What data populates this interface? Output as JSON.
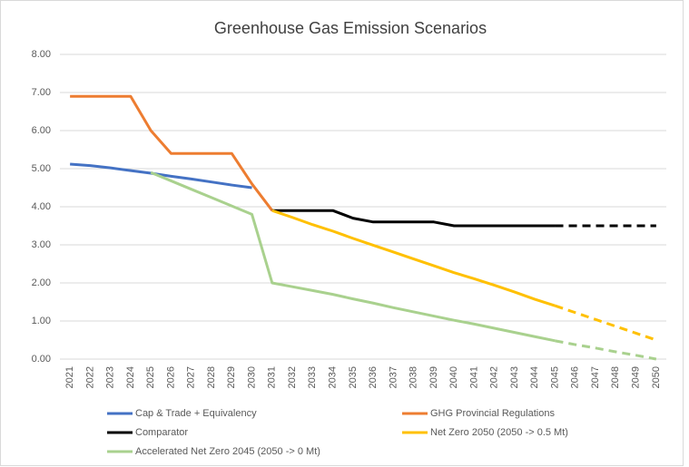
{
  "chart_data": {
    "type": "line",
    "title": "Greenhouse Gas Emission Scenarios",
    "categories": [
      "2021",
      "2022",
      "2023",
      "2024",
      "2025",
      "2026",
      "2027",
      "2028",
      "2029",
      "2030",
      "2031",
      "2032",
      "2033",
      "2034",
      "2035",
      "2036",
      "2037",
      "2038",
      "2039",
      "2040",
      "2041",
      "2042",
      "2043",
      "2044",
      "2045",
      "2046",
      "2047",
      "2048",
      "2049",
      "2050"
    ],
    "ylim": [
      0,
      8
    ],
    "yticks": [
      {
        "value": 0,
        "label": "0.00"
      },
      {
        "value": 1,
        "label": "1.00"
      },
      {
        "value": 2,
        "label": "2.00"
      },
      {
        "value": 3,
        "label": "3.00"
      },
      {
        "value": 4,
        "label": "4.00"
      },
      {
        "value": 5,
        "label": "5.00"
      },
      {
        "value": 6,
        "label": "6.00"
      },
      {
        "value": 7,
        "label": "7.00"
      },
      {
        "value": 8,
        "label": "8.00"
      }
    ],
    "grid": true,
    "series": [
      {
        "name": "Cap & Trade + Equivalency",
        "color": "#4472c4",
        "values": [
          5.12,
          5.08,
          5.02,
          4.95,
          4.88,
          4.8,
          4.73,
          4.65,
          4.57,
          4.5,
          null,
          null,
          null,
          null,
          null,
          null,
          null,
          null,
          null,
          null,
          null,
          null,
          null,
          null,
          null,
          null,
          null,
          null,
          null,
          null
        ]
      },
      {
        "name": "GHG Provincial Regulations",
        "color": "#ed7d31",
        "values": [
          6.9,
          6.9,
          6.9,
          6.9,
          6.0,
          5.4,
          5.4,
          5.4,
          5.4,
          4.6,
          3.9,
          null,
          null,
          null,
          null,
          null,
          null,
          null,
          null,
          null,
          null,
          null,
          null,
          null,
          null,
          null,
          null,
          null,
          null,
          null
        ]
      },
      {
        "name": "Comparator",
        "color": "#000000",
        "dashed_from": "2045",
        "values": [
          null,
          null,
          null,
          null,
          null,
          null,
          null,
          null,
          null,
          null,
          3.9,
          3.9,
          3.9,
          3.9,
          3.7,
          3.6,
          3.6,
          3.6,
          3.6,
          3.5,
          3.5,
          3.5,
          3.5,
          3.5,
          3.5,
          3.5,
          3.5,
          3.5,
          3.5,
          3.5
        ]
      },
      {
        "name": "Net Zero 2050 (2050 -> 0.5 Mt)",
        "color": "#ffc000",
        "dashed_from": "2045",
        "values": [
          null,
          null,
          null,
          null,
          null,
          null,
          null,
          null,
          null,
          null,
          3.9,
          3.72,
          3.53,
          3.36,
          3.17,
          2.99,
          2.81,
          2.63,
          2.45,
          2.27,
          2.11,
          1.94,
          1.76,
          1.57,
          1.4,
          1.22,
          1.04,
          0.86,
          0.68,
          0.5
        ]
      },
      {
        "name": "Accelerated Net Zero 2045 (2050 -> 0 Mt)",
        "color": "#a9d18e",
        "dashed_from": "2045",
        "values": [
          null,
          null,
          null,
          null,
          4.9,
          4.68,
          4.46,
          4.24,
          4.02,
          3.8,
          2.0,
          1.9,
          1.8,
          1.7,
          1.58,
          1.47,
          1.35,
          1.24,
          1.13,
          1.02,
          0.92,
          0.81,
          0.7,
          0.59,
          0.48,
          0.38,
          0.29,
          0.19,
          0.1,
          0.0
        ]
      }
    ]
  }
}
